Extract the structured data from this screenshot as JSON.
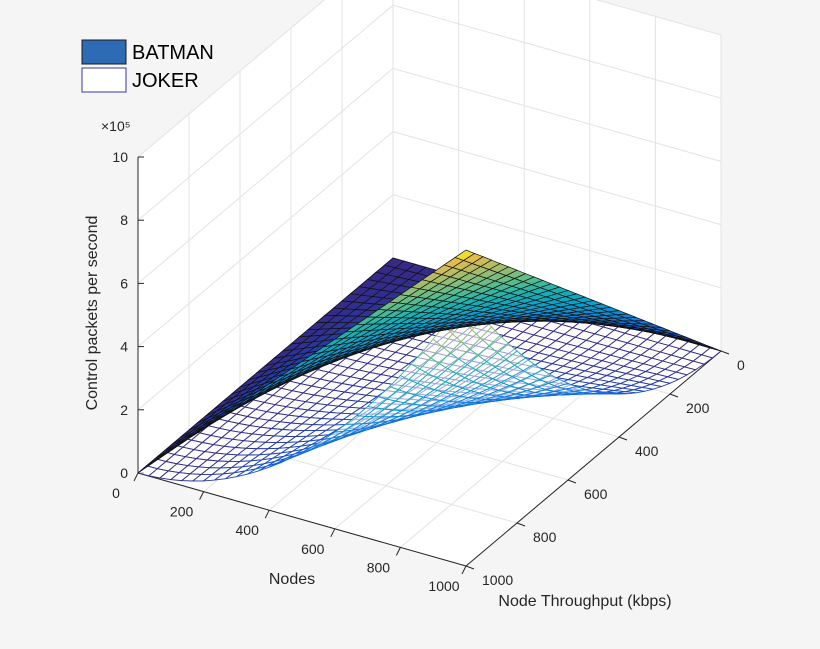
{
  "chart_data": {
    "type": "surface",
    "x_axis": {
      "label": "Nodes",
      "range": [
        0,
        1000
      ],
      "ticks": [
        0,
        200,
        400,
        600,
        800,
        1000
      ]
    },
    "y_axis": {
      "label": "Node Throughput (kbps)",
      "range": [
        0,
        1000
      ],
      "ticks": [
        0,
        200,
        400,
        600,
        800,
        1000
      ]
    },
    "z_axis": {
      "label": "Control packets per second",
      "range": [
        0,
        1000000
      ],
      "ticks": [
        0,
        2,
        4,
        6,
        8,
        10
      ],
      "exponent_label": "×10⁵"
    },
    "grid": true,
    "colormap": "parula",
    "legend": {
      "position": "top-left",
      "entries": [
        {
          "name": "BATMAN",
          "style": "filled",
          "color": "#2e6bb5"
        },
        {
          "name": "JOKER",
          "style": "mesh",
          "color": "#ffffff",
          "edge": "#3a3a9a"
        }
      ]
    },
    "series": [
      {
        "name": "BATMAN",
        "style": "filled surface",
        "description": "z grows linearly with Nodes × Throughput",
        "corner_values": [
          {
            "nodes": 0,
            "throughput": 0,
            "z": 0
          },
          {
            "nodes": 1000,
            "throughput": 0,
            "z": 0
          },
          {
            "nodes": 0,
            "throughput": 1000,
            "z": 0
          },
          {
            "nodes": 1000,
            "throughput": 1000,
            "z": 1000000
          }
        ],
        "edge_profiles": {
          "nodes_1000": {
            "throughput": [
              0,
              200,
              400,
              600,
              800,
              1000
            ],
            "z": [
              0,
              200000,
              400000,
              600000,
              800000,
              1000000
            ]
          },
          "throughput_1000": {
            "nodes": [
              0,
              200,
              400,
              600,
              800,
              1000
            ],
            "z": [
              0,
              200000,
              400000,
              600000,
              800000,
              1000000
            ]
          }
        }
      },
      {
        "name": "JOKER",
        "style": "mesh",
        "description": "z grows quadratically along both axes",
        "corner_values": [
          {
            "nodes": 0,
            "throughput": 0,
            "z": 0
          },
          {
            "nodes": 1000,
            "throughput": 0,
            "z": 0
          },
          {
            "nodes": 0,
            "throughput": 1000,
            "z": 0
          },
          {
            "nodes": 1000,
            "throughput": 1000,
            "z": 850000
          }
        ],
        "edge_profiles": {
          "nodes_1000": {
            "throughput": [
              0,
              200,
              400,
              600,
              800,
              1000
            ],
            "z": [
              0,
              34000,
              136000,
              306000,
              544000,
              850000
            ]
          },
          "throughput_1000": {
            "nodes": [
              0,
              200,
              400,
              600,
              800,
              1000
            ],
            "z": [
              0,
              34000,
              136000,
              306000,
              544000,
              850000
            ]
          }
        }
      }
    ]
  }
}
